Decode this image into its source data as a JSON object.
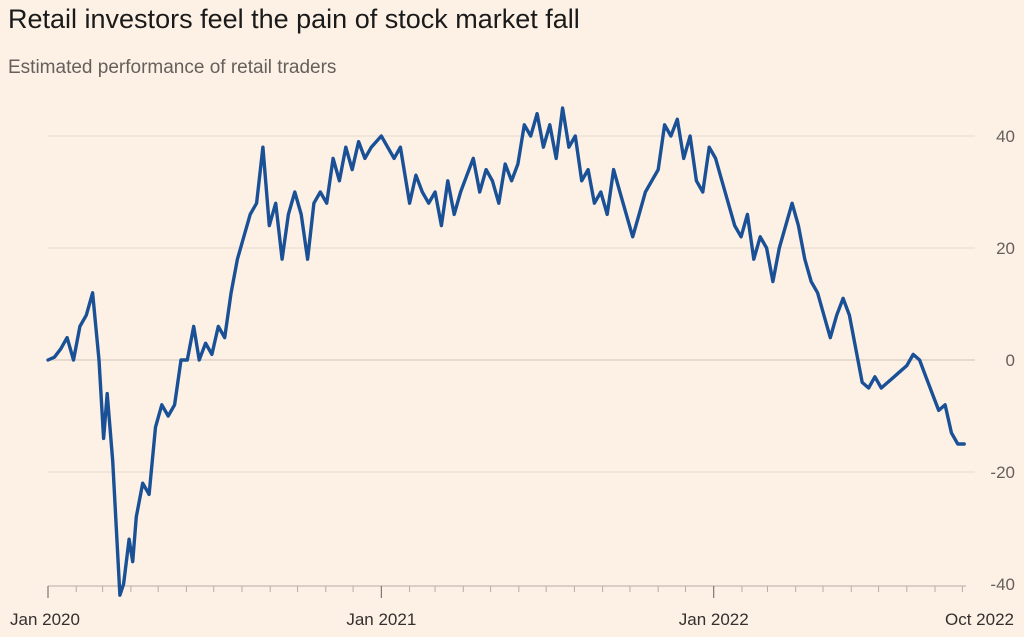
{
  "title": "Retail investors feel the pain of stock market fall",
  "subtitle": "Estimated performance of retail traders",
  "colors": {
    "background": "#fdf1e6",
    "line": "#1a5196",
    "grid": "#e6d9ce",
    "zero_line": "#cfc3b8"
  },
  "chart_data": {
    "type": "line",
    "title": "Retail investors feel the pain of stock market fall",
    "subtitle": "Estimated performance of retail traders",
    "xlabel": "",
    "ylabel": "",
    "ylim": [
      -40,
      45
    ],
    "xlim": [
      "2020-01-01",
      "2022-10-05"
    ],
    "y_axis_side": "right",
    "y_ticks": [
      40,
      20,
      0,
      -20,
      -40
    ],
    "x_ticks": [
      {
        "date": "2020-01-01",
        "label": "Jan 2020"
      },
      {
        "date": "2021-01-01",
        "label": "Jan 2021"
      },
      {
        "date": "2022-01-01",
        "label": "Jan 2022"
      },
      {
        "date": "2022-10-01",
        "label": "Oct 2022"
      }
    ],
    "grid": true,
    "series": [
      {
        "points": [
          [
            "2020-01-01",
            0
          ],
          [
            "2020-01-08",
            0.5
          ],
          [
            "2020-01-15",
            2
          ],
          [
            "2020-01-22",
            4
          ],
          [
            "2020-01-29",
            0
          ],
          [
            "2020-02-05",
            6
          ],
          [
            "2020-02-12",
            8
          ],
          [
            "2020-02-19",
            12
          ],
          [
            "2020-02-26",
            0
          ],
          [
            "2020-03-02",
            -14
          ],
          [
            "2020-03-06",
            -6
          ],
          [
            "2020-03-12",
            -18
          ],
          [
            "2020-03-16",
            -30
          ],
          [
            "2020-03-20",
            -42
          ],
          [
            "2020-03-24",
            -40
          ],
          [
            "2020-03-30",
            -32
          ],
          [
            "2020-04-03",
            -36
          ],
          [
            "2020-04-07",
            -28
          ],
          [
            "2020-04-14",
            -22
          ],
          [
            "2020-04-21",
            -24
          ],
          [
            "2020-04-28",
            -12
          ],
          [
            "2020-05-05",
            -8
          ],
          [
            "2020-05-12",
            -10
          ],
          [
            "2020-05-19",
            -8
          ],
          [
            "2020-05-26",
            0
          ],
          [
            "2020-06-02",
            0
          ],
          [
            "2020-06-09",
            6
          ],
          [
            "2020-06-15",
            0
          ],
          [
            "2020-06-22",
            3
          ],
          [
            "2020-06-29",
            1
          ],
          [
            "2020-07-06",
            6
          ],
          [
            "2020-07-13",
            4
          ],
          [
            "2020-07-20",
            12
          ],
          [
            "2020-07-27",
            18
          ],
          [
            "2020-08-03",
            22
          ],
          [
            "2020-08-10",
            26
          ],
          [
            "2020-08-17",
            28
          ],
          [
            "2020-08-24",
            38
          ],
          [
            "2020-08-31",
            24
          ],
          [
            "2020-09-07",
            28
          ],
          [
            "2020-09-14",
            18
          ],
          [
            "2020-09-21",
            26
          ],
          [
            "2020-09-28",
            30
          ],
          [
            "2020-10-05",
            26
          ],
          [
            "2020-10-12",
            18
          ],
          [
            "2020-10-19",
            28
          ],
          [
            "2020-10-26",
            30
          ],
          [
            "2020-11-02",
            28
          ],
          [
            "2020-11-09",
            36
          ],
          [
            "2020-11-16",
            32
          ],
          [
            "2020-11-23",
            38
          ],
          [
            "2020-11-30",
            34
          ],
          [
            "2020-12-07",
            39
          ],
          [
            "2020-12-14",
            36
          ],
          [
            "2020-12-21",
            38
          ],
          [
            "2021-01-01",
            40
          ],
          [
            "2021-01-08",
            38
          ],
          [
            "2021-01-15",
            36
          ],
          [
            "2021-01-22",
            38
          ],
          [
            "2021-02-01",
            28
          ],
          [
            "2021-02-08",
            33
          ],
          [
            "2021-02-15",
            30
          ],
          [
            "2021-02-22",
            28
          ],
          [
            "2021-03-01",
            30
          ],
          [
            "2021-03-08",
            24
          ],
          [
            "2021-03-15",
            32
          ],
          [
            "2021-03-22",
            26
          ],
          [
            "2021-03-29",
            30
          ],
          [
            "2021-04-05",
            33
          ],
          [
            "2021-04-12",
            36
          ],
          [
            "2021-04-19",
            30
          ],
          [
            "2021-04-26",
            34
          ],
          [
            "2021-05-03",
            32
          ],
          [
            "2021-05-10",
            28
          ],
          [
            "2021-05-17",
            35
          ],
          [
            "2021-05-24",
            32
          ],
          [
            "2021-05-31",
            35
          ],
          [
            "2021-06-07",
            42
          ],
          [
            "2021-06-14",
            40
          ],
          [
            "2021-06-21",
            44
          ],
          [
            "2021-06-28",
            38
          ],
          [
            "2021-07-05",
            42
          ],
          [
            "2021-07-12",
            36
          ],
          [
            "2021-07-19",
            45
          ],
          [
            "2021-07-26",
            38
          ],
          [
            "2021-08-02",
            40
          ],
          [
            "2021-08-09",
            32
          ],
          [
            "2021-08-16",
            34
          ],
          [
            "2021-08-23",
            28
          ],
          [
            "2021-08-30",
            30
          ],
          [
            "2021-09-06",
            26
          ],
          [
            "2021-09-13",
            34
          ],
          [
            "2021-09-20",
            30
          ],
          [
            "2021-09-27",
            26
          ],
          [
            "2021-10-04",
            22
          ],
          [
            "2021-10-11",
            26
          ],
          [
            "2021-10-18",
            30
          ],
          [
            "2021-10-25",
            32
          ],
          [
            "2021-11-01",
            34
          ],
          [
            "2021-11-08",
            42
          ],
          [
            "2021-11-15",
            40
          ],
          [
            "2021-11-22",
            43
          ],
          [
            "2021-11-29",
            36
          ],
          [
            "2021-12-06",
            40
          ],
          [
            "2021-12-13",
            32
          ],
          [
            "2021-12-20",
            30
          ],
          [
            "2021-12-27",
            38
          ],
          [
            "2022-01-03",
            36
          ],
          [
            "2022-01-10",
            32
          ],
          [
            "2022-01-17",
            28
          ],
          [
            "2022-01-24",
            24
          ],
          [
            "2022-01-31",
            22
          ],
          [
            "2022-02-07",
            26
          ],
          [
            "2022-02-14",
            18
          ],
          [
            "2022-02-21",
            22
          ],
          [
            "2022-02-28",
            20
          ],
          [
            "2022-03-07",
            14
          ],
          [
            "2022-03-14",
            20
          ],
          [
            "2022-03-21",
            24
          ],
          [
            "2022-03-28",
            28
          ],
          [
            "2022-04-04",
            24
          ],
          [
            "2022-04-11",
            18
          ],
          [
            "2022-04-18",
            14
          ],
          [
            "2022-04-25",
            12
          ],
          [
            "2022-05-02",
            8
          ],
          [
            "2022-05-09",
            4
          ],
          [
            "2022-05-16",
            8
          ],
          [
            "2022-05-23",
            11
          ],
          [
            "2022-05-30",
            8
          ],
          [
            "2022-06-06",
            2
          ],
          [
            "2022-06-13",
            -4
          ],
          [
            "2022-06-20",
            -5
          ],
          [
            "2022-06-27",
            -3
          ],
          [
            "2022-07-04",
            -5
          ],
          [
            "2022-07-11",
            -4
          ],
          [
            "2022-07-18",
            -3
          ],
          [
            "2022-07-25",
            -2
          ],
          [
            "2022-08-01",
            -1
          ],
          [
            "2022-08-08",
            1
          ],
          [
            "2022-08-15",
            0
          ],
          [
            "2022-08-22",
            -3
          ],
          [
            "2022-08-29",
            -6
          ],
          [
            "2022-09-05",
            -9
          ],
          [
            "2022-09-12",
            -8
          ],
          [
            "2022-09-19",
            -13
          ],
          [
            "2022-09-26",
            -15
          ],
          [
            "2022-10-03",
            -15
          ]
        ]
      }
    ]
  }
}
